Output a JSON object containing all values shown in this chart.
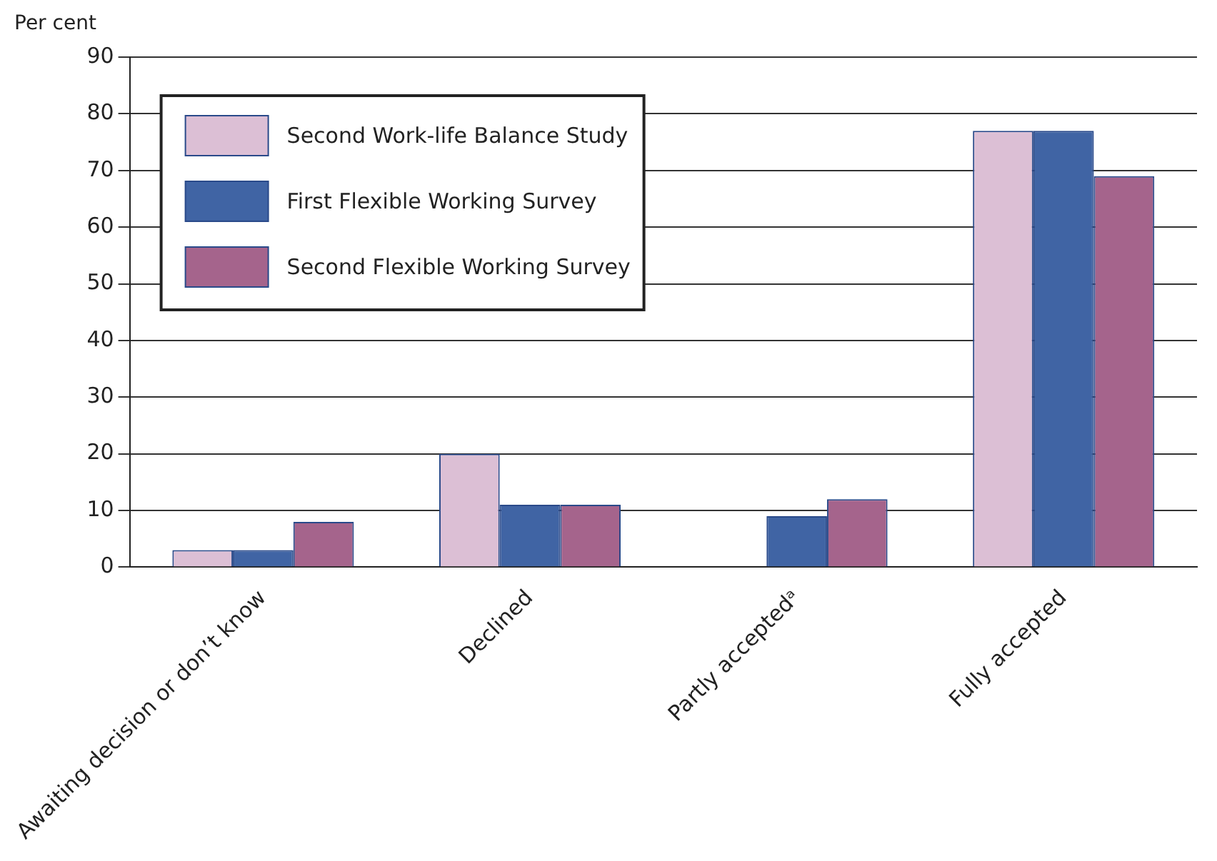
{
  "chart_data": {
    "type": "bar",
    "ylabel": "Per cent",
    "categories": [
      "Awaiting decision or don’t know",
      "Declined",
      "Partly acceptedᵃ",
      "Fully accepted"
    ],
    "series": [
      {
        "name": "Second Work-life Balance Study",
        "color": "#dcbfd5",
        "values": [
          3,
          20,
          null,
          77
        ]
      },
      {
        "name": "First Flexible Working Survey",
        "color": "#4064a4",
        "values": [
          3,
          11,
          9,
          77
        ]
      },
      {
        "name": "Second Flexible Working Survey",
        "color": "#a5648c",
        "values": [
          8,
          11,
          12,
          69
        ]
      }
    ],
    "ylim": [
      0,
      90
    ],
    "yticks": [
      0,
      10,
      20,
      30,
      40,
      50,
      60,
      70,
      80,
      90
    ],
    "grid": "y",
    "legend": "top left"
  }
}
